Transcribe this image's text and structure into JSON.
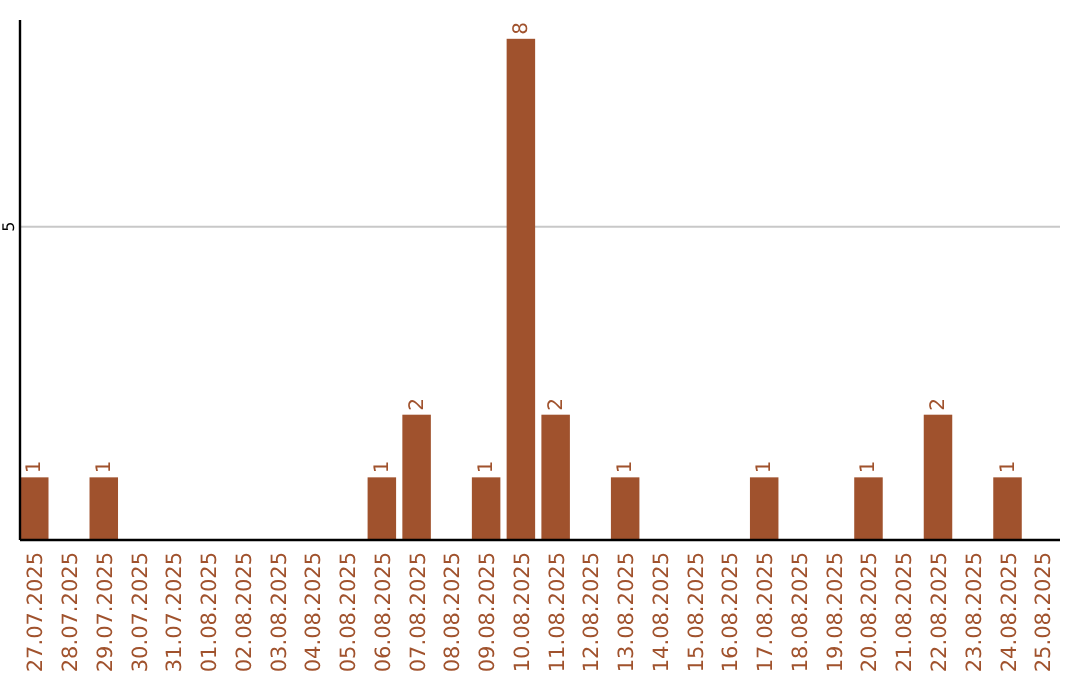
{
  "chart_data": {
    "type": "bar",
    "categories": [
      "27.07.2025",
      "28.07.2025",
      "29.07.2025",
      "30.07.2025",
      "31.07.2025",
      "01.08.2025",
      "02.08.2025",
      "03.08.2025",
      "04.08.2025",
      "05.08.2025",
      "06.08.2025",
      "07.08.2025",
      "08.08.2025",
      "09.08.2025",
      "10.08.2025",
      "11.08.2025",
      "12.08.2025",
      "13.08.2025",
      "14.08.2025",
      "15.08.2025",
      "16.08.2025",
      "17.08.2025",
      "18.08.2025",
      "19.08.2025",
      "20.08.2025",
      "21.08.2025",
      "22.08.2025",
      "23.08.2025",
      "24.08.2025",
      "25.08.2025"
    ],
    "values": [
      1,
      0,
      1,
      0,
      0,
      0,
      0,
      0,
      0,
      0,
      1,
      2,
      0,
      1,
      8,
      2,
      0,
      1,
      0,
      0,
      0,
      1,
      0,
      0,
      1,
      0,
      2,
      0,
      1,
      0
    ],
    "value_labels": [
      "1",
      null,
      "1",
      null,
      null,
      null,
      null,
      null,
      null,
      null,
      "1",
      "2",
      null,
      "1",
      "8",
      "2",
      null,
      "1",
      null,
      null,
      null,
      "1",
      null,
      null,
      "1",
      null,
      "2",
      null,
      "1",
      null
    ],
    "color": "#a0522d",
    "ylim": [
      0,
      8.3
    ],
    "yticks": [
      5
    ],
    "grid": "y"
  }
}
